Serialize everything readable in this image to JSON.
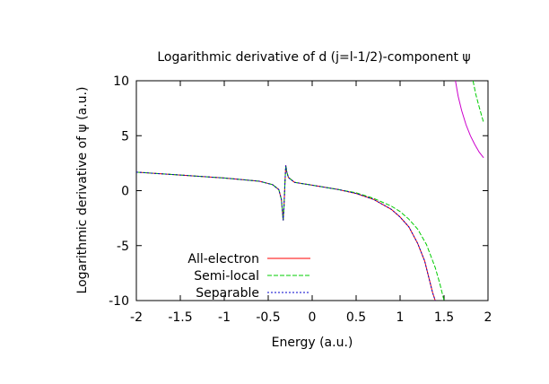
{
  "chart_data": {
    "type": "line",
    "title": "Logarithmic derivative of d (j=l-1/2)-component ψ",
    "xlabel": "Energy (a.u.)",
    "ylabel": "Logarithmic derivative of ψ (a.u.)",
    "xlim": [
      -2,
      2
    ],
    "ylim": [
      -10,
      10
    ],
    "xticks": [
      "-2",
      "-1.5",
      "-1",
      "-0.5",
      "0",
      "0.5",
      "1",
      "1.5",
      "2"
    ],
    "yticks": [
      "10",
      "5",
      "0",
      "-5",
      "-10"
    ],
    "grid": false,
    "legend_position": "bottom-left",
    "series": [
      {
        "name": "All-electron",
        "color": "#ff0000",
        "dash": "solid",
        "points": [
          [
            -2.0,
            1.68
          ],
          [
            -1.5,
            1.42
          ],
          [
            -1.0,
            1.15
          ],
          [
            -0.6,
            0.86
          ],
          [
            -0.45,
            0.55
          ],
          [
            -0.38,
            0.1
          ],
          [
            -0.35,
            -0.8
          ],
          [
            -0.33,
            -2.7
          ],
          [
            -0.32,
            -1.4
          ],
          [
            -0.31,
            0.6
          ],
          [
            -0.305,
            1.5
          ],
          [
            -0.3,
            2.3
          ],
          [
            -0.29,
            1.75
          ],
          [
            -0.27,
            1.2
          ],
          [
            -0.2,
            0.75
          ],
          [
            0.0,
            0.5
          ],
          [
            0.3,
            0.1
          ],
          [
            0.5,
            -0.25
          ],
          [
            0.7,
            -0.8
          ],
          [
            0.9,
            -1.7
          ],
          [
            1.0,
            -2.4
          ],
          [
            1.1,
            -3.3
          ],
          [
            1.2,
            -4.8
          ],
          [
            1.28,
            -6.4
          ],
          [
            1.33,
            -8.0
          ],
          [
            1.37,
            -9.3
          ],
          [
            1.4,
            -10.0
          ]
        ]
      },
      {
        "name": "Semi-local",
        "color": "#00cc00",
        "dash": "dash",
        "points": [
          [
            -2.0,
            1.68
          ],
          [
            -1.5,
            1.42
          ],
          [
            -1.0,
            1.15
          ],
          [
            -0.6,
            0.86
          ],
          [
            -0.45,
            0.55
          ],
          [
            -0.38,
            0.1
          ],
          [
            -0.35,
            -0.8
          ],
          [
            -0.33,
            -2.7
          ],
          [
            -0.32,
            -1.4
          ],
          [
            -0.31,
            0.6
          ],
          [
            -0.305,
            1.5
          ],
          [
            -0.3,
            2.3
          ],
          [
            -0.29,
            1.75
          ],
          [
            -0.27,
            1.2
          ],
          [
            -0.2,
            0.75
          ],
          [
            0.0,
            0.5
          ],
          [
            0.3,
            0.1
          ],
          [
            0.5,
            -0.2
          ],
          [
            0.7,
            -0.7
          ],
          [
            0.9,
            -1.4
          ],
          [
            1.0,
            -1.9
          ],
          [
            1.1,
            -2.6
          ],
          [
            1.2,
            -3.5
          ],
          [
            1.3,
            -4.9
          ],
          [
            1.4,
            -7.0
          ],
          [
            1.45,
            -8.4
          ],
          [
            1.5,
            -10.0
          ]
        ]
      },
      {
        "name": "Separable",
        "color": "#0000cc",
        "dash": "dot",
        "points": [
          [
            -2.0,
            1.68
          ],
          [
            -1.5,
            1.42
          ],
          [
            -1.0,
            1.15
          ],
          [
            -0.6,
            0.86
          ],
          [
            -0.45,
            0.55
          ],
          [
            -0.38,
            0.1
          ],
          [
            -0.35,
            -0.8
          ],
          [
            -0.33,
            -2.7
          ],
          [
            -0.32,
            -1.4
          ],
          [
            -0.31,
            0.6
          ],
          [
            -0.305,
            1.5
          ],
          [
            -0.3,
            2.3
          ],
          [
            -0.29,
            1.75
          ],
          [
            -0.27,
            1.2
          ],
          [
            -0.2,
            0.75
          ],
          [
            0.0,
            0.5
          ],
          [
            0.3,
            0.1
          ],
          [
            0.5,
            -0.25
          ],
          [
            0.7,
            -0.8
          ],
          [
            0.9,
            -1.7
          ],
          [
            1.0,
            -2.4
          ],
          [
            1.1,
            -3.3
          ],
          [
            1.2,
            -4.8
          ],
          [
            1.28,
            -6.4
          ],
          [
            1.33,
            -8.0
          ],
          [
            1.37,
            -9.3
          ],
          [
            1.4,
            -10.0
          ]
        ]
      },
      {
        "name": "",
        "color": "#cc00cc",
        "dash": "solid",
        "points": [
          [
            1.63,
            10.0
          ],
          [
            1.66,
            8.6
          ],
          [
            1.7,
            7.3
          ],
          [
            1.75,
            6.0
          ],
          [
            1.8,
            5.0
          ],
          [
            1.85,
            4.2
          ],
          [
            1.9,
            3.5
          ],
          [
            1.95,
            3.0
          ]
        ]
      },
      {
        "name": "",
        "color": "#00cc00",
        "dash": "dash",
        "points": [
          [
            1.83,
            10.0
          ],
          [
            1.86,
            8.8
          ],
          [
            1.9,
            7.6
          ],
          [
            1.95,
            6.2
          ]
        ]
      }
    ]
  }
}
